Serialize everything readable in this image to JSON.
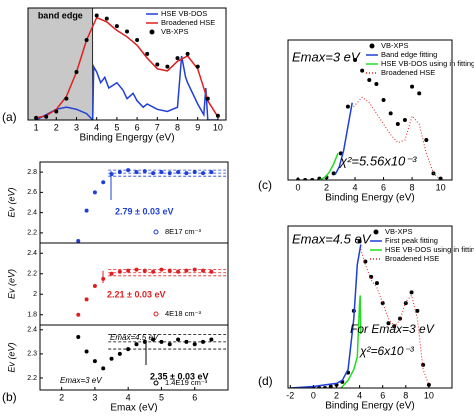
{
  "chart_data": [
    {
      "type": "line",
      "label": "(a)",
      "xlabel": "Binding Engergy (eV)",
      "xlim": [
        0.6,
        10.4
      ],
      "ylim": [
        0,
        1.05
      ],
      "xticks": [
        1,
        2,
        3,
        4,
        5,
        6,
        7,
        8,
        9,
        10
      ],
      "shade": {
        "xlim": [
          0.6,
          3.8
        ],
        "label": "band edge",
        "color": "#c8c8c8"
      },
      "legend": "upper right",
      "series": [
        {
          "name": "HSE VB-DOS",
          "color": "#1f3fd6",
          "style": "line",
          "x": [
            1,
            1.5,
            2,
            2.5,
            3,
            3.5,
            3.8,
            3.85,
            4,
            4.2,
            4.4,
            4.6,
            5,
            5.3,
            5.5,
            5.8,
            6,
            6.3,
            6.5,
            7,
            7.5,
            8,
            8.2,
            8.4,
            8.5,
            9,
            9.3,
            9.4,
            9.5,
            10
          ],
          "values": [
            0,
            0.05,
            0.1,
            0.12,
            0.1,
            0.06,
            0,
            0.5,
            0.45,
            0.35,
            0.4,
            0.3,
            0.35,
            0.28,
            0.2,
            0.25,
            0.18,
            0.12,
            0.15,
            0.1,
            0.08,
            0.12,
            0.6,
            0.4,
            0.35,
            0.15,
            0.05,
            0.3,
            0,
            0
          ]
        },
        {
          "name": "Broadened HSE",
          "color": "#e02020",
          "style": "line",
          "x": [
            1,
            1.5,
            2,
            2.5,
            3,
            3.5,
            4,
            4.5,
            5,
            5.5,
            6,
            6.5,
            7,
            7.5,
            8,
            8.5,
            9,
            9.5,
            10
          ],
          "values": [
            0.02,
            0.04,
            0.1,
            0.22,
            0.45,
            0.75,
            0.96,
            0.92,
            0.84,
            0.78,
            0.7,
            0.58,
            0.48,
            0.46,
            0.55,
            0.6,
            0.48,
            0.18,
            0.03
          ]
        },
        {
          "name": "VB-XPS",
          "color": "#000000",
          "style": "markers",
          "x": [
            1,
            1.5,
            2,
            2.5,
            3,
            3.5,
            4,
            4.5,
            5,
            5.5,
            6,
            6.5,
            7,
            7.5,
            8,
            8.5,
            9,
            9.5,
            10
          ],
          "values": [
            0.02,
            0.03,
            0.08,
            0.2,
            0.45,
            0.75,
            0.98,
            0.95,
            0.88,
            0.83,
            0.75,
            0.62,
            0.52,
            0.5,
            0.58,
            0.62,
            0.5,
            0.2,
            0.04
          ]
        }
      ]
    },
    {
      "type": "scatter",
      "ylabel": "Ev (eV)",
      "xlim": [
        1.35,
        7
      ],
      "ylim": [
        2.1,
        2.9
      ],
      "yticks": [
        2.2,
        2.4,
        2.6,
        2.8
      ],
      "legend": "lower right",
      "fit": {
        "value": 2.79,
        "error": 0.03,
        "label": "2.79 ± 0.03 eV",
        "color": "#1f3fd6"
      },
      "series": [
        {
          "name": "8E17 cm⁻³",
          "color": "#1f3fd6",
          "style": "markers",
          "x": [
            2.5,
            2.75,
            3,
            3.25,
            3.5,
            3.75,
            4,
            4.25,
            4.5,
            4.75,
            5,
            5.25,
            5.5,
            5.75,
            6,
            6.25,
            6.5
          ],
          "values": [
            2.12,
            2.42,
            2.6,
            2.7,
            2.78,
            2.8,
            2.82,
            2.8,
            2.81,
            2.79,
            2.8,
            2.79,
            2.8,
            2.79,
            2.8,
            2.79,
            2.8
          ]
        }
      ]
    },
    {
      "type": "scatter",
      "ylabel": "Ev (eV)",
      "xlim": [
        1.35,
        7
      ],
      "ylim": [
        1.7,
        2.5
      ],
      "yticks": [
        1.8,
        2.0,
        2.2,
        2.4
      ],
      "legend": "lower right",
      "fit": {
        "value": 2.21,
        "error": 0.03,
        "label": "2.21 ± 0.03 eV",
        "color": "#e02020"
      },
      "series": [
        {
          "name": "4E18 cm⁻³",
          "color": "#e02020",
          "style": "markers",
          "x": [
            2.5,
            2.75,
            3,
            3.25,
            3.5,
            3.75,
            4,
            4.25,
            4.5,
            4.75,
            5,
            5.25,
            5.5,
            5.75,
            6,
            6.25,
            6.5
          ],
          "values": [
            1.8,
            1.95,
            2.08,
            2.15,
            2.2,
            2.22,
            2.23,
            2.24,
            2.23,
            2.22,
            2.24,
            2.23,
            2.22,
            2.23,
            2.24,
            2.23,
            2.22
          ]
        }
      ]
    },
    {
      "type": "scatter",
      "label": "(b)",
      "ylabel": "Ev (eV)",
      "xlabel": "Emax (eV)",
      "xlim": [
        1.35,
        7
      ],
      "ylim": [
        2.15,
        2.42
      ],
      "xticks": [
        2,
        3,
        4,
        5,
        6
      ],
      "yticks": [
        2.2,
        2.3,
        2.4
      ],
      "legend": "lower right",
      "fit": {
        "value": 2.35,
        "error": 0.03,
        "label": "2.35 ± 0.03 eV",
        "color": "#000000"
      },
      "annotations": [
        "Emax=4.5 eV",
        "Emax=3 eV"
      ],
      "series": [
        {
          "name": "1.4E19 cm⁻³",
          "color": "#000000",
          "style": "markers",
          "x": [
            2.5,
            2.75,
            3,
            3.25,
            3.5,
            3.75,
            4,
            4.25,
            4.5,
            4.75,
            5,
            5.25,
            5.5,
            5.75,
            6,
            6.25,
            6.5
          ],
          "values": [
            2.37,
            2.31,
            2.27,
            2.24,
            2.28,
            2.3,
            2.32,
            2.34,
            2.35,
            2.36,
            2.35,
            2.34,
            2.36,
            2.35,
            2.34,
            2.35,
            2.36
          ]
        }
      ]
    },
    {
      "type": "line",
      "label": "(c)",
      "xlabel": "Binding Energy (eV)",
      "xlim": [
        -0.7,
        10.8
      ],
      "ylim": [
        0,
        1.05
      ],
      "xticks": [
        0,
        2,
        4,
        6,
        8,
        10
      ],
      "legend": "upper right",
      "annotations": [
        "Emax=3 eV",
        "χ²=5.56x10⁻³"
      ],
      "series": [
        {
          "name": "VB-XPS",
          "color": "#000000",
          "style": "markers",
          "x": [
            0,
            0.5,
            1,
            1.5,
            2,
            2.5,
            3,
            3.5,
            4,
            4.5,
            5,
            5.5,
            6,
            6.5,
            7,
            7.5,
            8,
            8.5,
            9,
            9.5,
            10
          ],
          "values": [
            0,
            0,
            0,
            0.01,
            0.02,
            0.05,
            0.2,
            0.55,
            0.9,
            0.82,
            0.75,
            0.72,
            0.6,
            0.5,
            0.42,
            0.45,
            0.7,
            0.65,
            0.3,
            0.05,
            0.01
          ]
        },
        {
          "name": "Band edge fitting",
          "color": "#1f3fd6",
          "style": "line",
          "x": [
            2.6,
            2.9,
            3.2,
            3.5,
            3.8
          ],
          "values": [
            0.04,
            0.1,
            0.22,
            0.4,
            0.58
          ]
        },
        {
          "name": "HSE VB-DOS using in fitting",
          "color": "#22dd22",
          "style": "line",
          "x": [
            1.5,
            1.9,
            2.2,
            2.5,
            2.8
          ],
          "values": [
            0,
            0.02,
            0.06,
            0.12,
            0.2
          ]
        },
        {
          "name": "Broadened HSE",
          "color": "#e02020",
          "style": "dotted",
          "x": [
            3.9,
            4.5,
            5,
            5.5,
            6,
            6.5,
            7,
            7.5,
            8,
            8.5,
            9,
            9.5,
            10
          ],
          "values": [
            0.55,
            0.62,
            0.58,
            0.5,
            0.42,
            0.34,
            0.28,
            0.3,
            0.48,
            0.42,
            0.2,
            0.05,
            0
          ]
        }
      ]
    },
    {
      "type": "line",
      "label": "(d)",
      "xlabel": "Binding Energy (eV)",
      "xlim": [
        -2.2,
        12
      ],
      "ylim": [
        0,
        1.05
      ],
      "xticks": [
        -2,
        0,
        2,
        4,
        6,
        8,
        10
      ],
      "legend": "upper right",
      "annotations": [
        "Emax=4.5 eV",
        "For Emax=3 eV",
        "χ²=6x10⁻³"
      ],
      "series": [
        {
          "name": "VB-XPS",
          "color": "#000000",
          "style": "markers",
          "x": [
            0,
            0.5,
            1,
            1.5,
            2,
            2.5,
            3,
            3.5,
            4,
            4.5,
            5,
            5.5,
            6,
            6.5,
            7,
            7.5,
            8,
            8.5,
            9,
            9.5,
            10
          ],
          "values": [
            0,
            0,
            0,
            0.01,
            0.02,
            0.04,
            0.1,
            0.5,
            0.95,
            0.82,
            0.72,
            0.68,
            0.55,
            0.42,
            0.4,
            0.45,
            0.55,
            0.62,
            0.5,
            0.15,
            0.02
          ]
        },
        {
          "name": "First peak fitting",
          "color": "#1f3fd6",
          "style": "line",
          "x": [
            -2,
            0,
            1,
            2,
            2.5,
            3,
            3.5,
            3.8,
            4.1
          ],
          "values": [
            0,
            0.01,
            0.02,
            0.03,
            0.05,
            0.12,
            0.45,
            0.8,
            0.93
          ]
        },
        {
          "name": "HSE VB-DOS using in fitting",
          "color": "#22dd22",
          "style": "line",
          "x": [
            2.4,
            3,
            3.5,
            3.8,
            4,
            4.05,
            4.1
          ],
          "values": [
            0,
            0.05,
            0.12,
            0.2,
            0.55,
            0.6,
            0.35
          ]
        },
        {
          "name": "Broadened HSE",
          "color": "#e02020",
          "style": "dotted",
          "x": [
            4.1,
            4.5,
            5,
            5.5,
            6,
            6.5,
            7,
            7.5,
            8,
            8.5,
            9,
            9.5,
            10
          ],
          "values": [
            0.9,
            0.8,
            0.7,
            0.65,
            0.55,
            0.45,
            0.4,
            0.44,
            0.56,
            0.6,
            0.45,
            0.12,
            0.02
          ]
        }
      ]
    }
  ]
}
